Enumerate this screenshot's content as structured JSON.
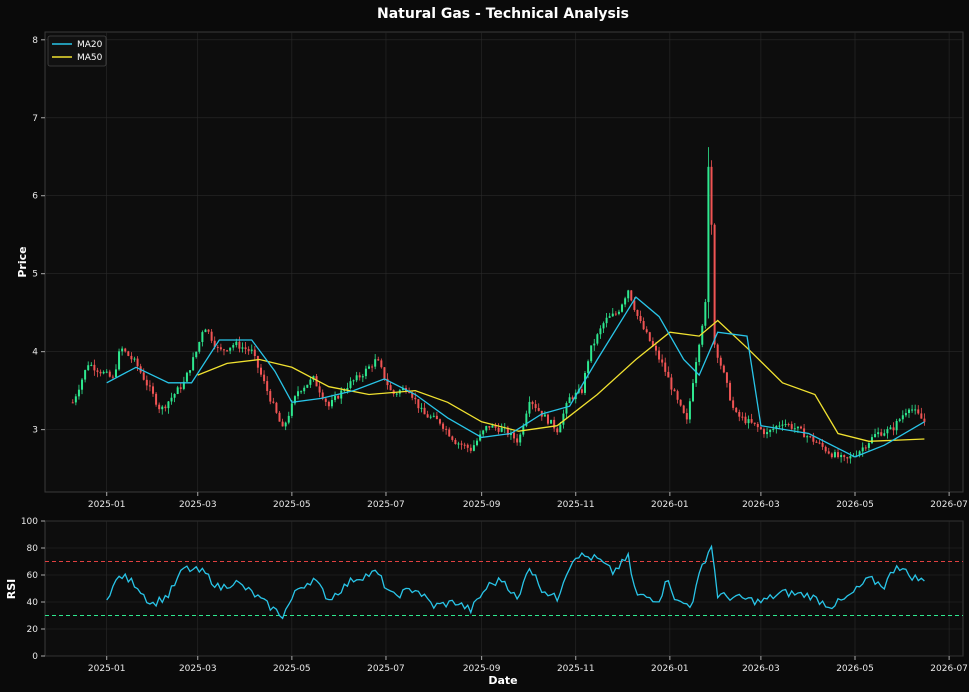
{
  "chart_data": {
    "type": "line",
    "title": "Natural Gas - Technical Analysis",
    "colors": {
      "background": "#0a0a0a",
      "up": "#2ee88f",
      "down": "#f05454",
      "ma20": "#29c5e8",
      "ma50": "#f0e130",
      "rsi": "#29c5e8",
      "overbought": "#e04040",
      "oversold": "#2ee88f"
    },
    "price_panel": {
      "ylabel": "Price",
      "ylim": [
        2.2,
        8.1
      ],
      "yticks": [
        "3",
        "4",
        "5",
        "6",
        "7",
        "8"
      ],
      "legend": [
        "MA20",
        "MA50"
      ],
      "legend_position": "top-left",
      "grid": true
    },
    "rsi_panel": {
      "ylabel": "RSI",
      "xlabel": "Date",
      "ylim": [
        0,
        100
      ],
      "yticks": [
        "0",
        "20",
        "40",
        "60",
        "80",
        "100"
      ],
      "overbought": 70,
      "oversold": 30,
      "grid": true
    },
    "xlim": [
      "2024-11-22",
      "2026-07-10"
    ],
    "xticks": [
      "2025-01",
      "2025-03",
      "2025-05",
      "2025-07",
      "2025-09",
      "2025-11",
      "2026-01",
      "2026-03",
      "2026-05",
      "2026-07"
    ],
    "price_keypoints": [
      [
        "2024-12-10",
        3.35
      ],
      [
        "2024-12-20",
        3.85
      ],
      [
        "2025-01-05",
        3.65
      ],
      [
        "2025-01-10",
        4.05
      ],
      [
        "2025-01-20",
        3.85
      ],
      [
        "2025-01-28",
        3.55
      ],
      [
        "2025-02-05",
        3.25
      ],
      [
        "2025-02-20",
        3.6
      ],
      [
        "2025-03-01",
        4.05
      ],
      [
        "2025-03-05",
        4.35
      ],
      [
        "2025-03-15",
        4.0
      ],
      [
        "2025-03-25",
        4.1
      ],
      [
        "2025-04-05",
        4.0
      ],
      [
        "2025-04-15",
        3.5
      ],
      [
        "2025-04-25",
        3.0
      ],
      [
        "2025-05-05",
        3.5
      ],
      [
        "2025-05-15",
        3.65
      ],
      [
        "2025-05-25",
        3.3
      ],
      [
        "2025-06-05",
        3.55
      ],
      [
        "2025-06-15",
        3.7
      ],
      [
        "2025-06-25",
        3.9
      ],
      [
        "2025-07-05",
        3.45
      ],
      [
        "2025-07-15",
        3.55
      ],
      [
        "2025-07-25",
        3.2
      ],
      [
        "2025-08-05",
        3.1
      ],
      [
        "2025-08-15",
        2.85
      ],
      [
        "2025-08-25",
        2.75
      ],
      [
        "2025-09-05",
        3.05
      ],
      [
        "2025-09-15",
        3.0
      ],
      [
        "2025-09-25",
        2.85
      ],
      [
        "2025-10-02",
        3.4
      ],
      [
        "2025-10-10",
        3.2
      ],
      [
        "2025-10-20",
        3.0
      ],
      [
        "2025-10-28",
        3.4
      ],
      [
        "2025-11-05",
        3.5
      ],
      [
        "2025-11-10",
        4.0
      ],
      [
        "2025-11-20",
        4.4
      ],
      [
        "2025-11-28",
        4.5
      ],
      [
        "2025-12-05",
        4.8
      ],
      [
        "2025-12-12",
        4.4
      ],
      [
        "2025-12-20",
        4.1
      ],
      [
        "2025-12-28",
        3.8
      ],
      [
        "2026-01-05",
        3.4
      ],
      [
        "2026-01-12",
        3.1
      ],
      [
        "2026-01-18",
        3.9
      ],
      [
        "2026-01-24",
        4.6
      ],
      [
        "2026-01-27",
        6.9
      ],
      [
        "2026-01-30",
        4.1
      ],
      [
        "2026-02-05",
        3.7
      ],
      [
        "2026-02-12",
        3.2
      ],
      [
        "2026-02-25",
        3.05
      ],
      [
        "2026-03-05",
        2.95
      ],
      [
        "2026-03-15",
        3.1
      ],
      [
        "2026-03-25",
        3.0
      ],
      [
        "2026-04-05",
        2.85
      ],
      [
        "2026-04-15",
        2.7
      ],
      [
        "2026-04-25",
        2.6
      ],
      [
        "2026-05-05",
        2.75
      ],
      [
        "2026-05-15",
        2.95
      ],
      [
        "2026-05-25",
        3.0
      ],
      [
        "2026-06-05",
        3.3
      ],
      [
        "2026-06-15",
        3.1
      ]
    ],
    "ma20": [
      [
        "2025-01-01",
        3.6
      ],
      [
        "2025-01-20",
        3.8
      ],
      [
        "2025-02-10",
        3.6
      ],
      [
        "2025-02-25",
        3.6
      ],
      [
        "2025-03-15",
        4.15
      ],
      [
        "2025-04-05",
        4.15
      ],
      [
        "2025-04-20",
        3.75
      ],
      [
        "2025-05-01",
        3.35
      ],
      [
        "2025-05-20",
        3.4
      ],
      [
        "2025-06-10",
        3.5
      ],
      [
        "2025-06-30",
        3.65
      ],
      [
        "2025-07-20",
        3.45
      ],
      [
        "2025-08-10",
        3.15
      ],
      [
        "2025-09-01",
        2.9
      ],
      [
        "2025-09-20",
        2.95
      ],
      [
        "2025-10-10",
        3.2
      ],
      [
        "2025-10-28",
        3.3
      ],
      [
        "2025-11-15",
        3.9
      ],
      [
        "2025-12-10",
        4.7
      ],
      [
        "2025-12-25",
        4.45
      ],
      [
        "2026-01-10",
        3.9
      ],
      [
        "2026-01-20",
        3.7
      ],
      [
        "2026-02-01",
        4.25
      ],
      [
        "2026-02-20",
        4.2
      ],
      [
        "2026-03-01",
        3.05
      ],
      [
        "2026-04-01",
        2.95
      ],
      [
        "2026-05-01",
        2.65
      ],
      [
        "2026-05-20",
        2.8
      ],
      [
        "2026-06-15",
        3.1
      ]
    ],
    "ma50": [
      [
        "2025-03-01",
        3.7
      ],
      [
        "2025-03-20",
        3.85
      ],
      [
        "2025-04-10",
        3.9
      ],
      [
        "2025-05-01",
        3.8
      ],
      [
        "2025-05-25",
        3.55
      ],
      [
        "2025-06-20",
        3.45
      ],
      [
        "2025-07-20",
        3.5
      ],
      [
        "2025-08-10",
        3.35
      ],
      [
        "2025-09-01",
        3.1
      ],
      [
        "2025-09-25",
        2.98
      ],
      [
        "2025-10-20",
        3.05
      ],
      [
        "2025-11-15",
        3.45
      ],
      [
        "2025-12-10",
        3.9
      ],
      [
        "2026-01-01",
        4.25
      ],
      [
        "2026-01-20",
        4.2
      ],
      [
        "2026-02-01",
        4.4
      ],
      [
        "2026-02-20",
        4.05
      ],
      [
        "2026-03-15",
        3.6
      ],
      [
        "2026-04-05",
        3.45
      ],
      [
        "2026-04-20",
        2.95
      ],
      [
        "2026-05-10",
        2.85
      ],
      [
        "2026-06-15",
        2.88
      ]
    ],
    "rsi_keypoints": [
      [
        "2025-01-01",
        44
      ],
      [
        "2025-01-10",
        60
      ],
      [
        "2025-01-20",
        53
      ],
      [
        "2025-01-30",
        38
      ],
      [
        "2025-02-10",
        45
      ],
      [
        "2025-02-20",
        65
      ],
      [
        "2025-03-05",
        62
      ],
      [
        "2025-03-15",
        50
      ],
      [
        "2025-03-25",
        55
      ],
      [
        "2025-04-05",
        47
      ],
      [
        "2025-04-15",
        38
      ],
      [
        "2025-04-25",
        30
      ],
      [
        "2025-05-05",
        50
      ],
      [
        "2025-05-15",
        57
      ],
      [
        "2025-05-25",
        42
      ],
      [
        "2025-06-10",
        57
      ],
      [
        "2025-06-25",
        62
      ],
      [
        "2025-07-05",
        44
      ],
      [
        "2025-07-20",
        50
      ],
      [
        "2025-08-01",
        37
      ],
      [
        "2025-08-15",
        40
      ],
      [
        "2025-08-25",
        34
      ],
      [
        "2025-09-05",
        52
      ],
      [
        "2025-09-15",
        57
      ],
      [
        "2025-09-25",
        40
      ],
      [
        "2025-10-01",
        68
      ],
      [
        "2025-10-10",
        50
      ],
      [
        "2025-10-20",
        42
      ],
      [
        "2025-10-25",
        60
      ],
      [
        "2025-11-01",
        75
      ],
      [
        "2025-11-15",
        72
      ],
      [
        "2025-11-25",
        62
      ],
      [
        "2025-12-05",
        73
      ],
      [
        "2025-12-10",
        45
      ],
      [
        "2025-12-25",
        42
      ],
      [
        "2025-12-31",
        58
      ],
      [
        "2026-01-05",
        40
      ],
      [
        "2026-01-15",
        38
      ],
      [
        "2026-01-22",
        67
      ],
      [
        "2026-01-28",
        82
      ],
      [
        "2026-02-01",
        45
      ],
      [
        "2026-02-20",
        42
      ],
      [
        "2026-03-01",
        40
      ],
      [
        "2026-03-15",
        47
      ],
      [
        "2026-04-01",
        45
      ],
      [
        "2026-04-15",
        37
      ],
      [
        "2026-04-25",
        42
      ],
      [
        "2026-05-01",
        48
      ],
      [
        "2026-05-10",
        57
      ],
      [
        "2026-05-20",
        52
      ],
      [
        "2026-05-28",
        68
      ],
      [
        "2026-06-05",
        60
      ],
      [
        "2026-06-15",
        55
      ]
    ]
  }
}
